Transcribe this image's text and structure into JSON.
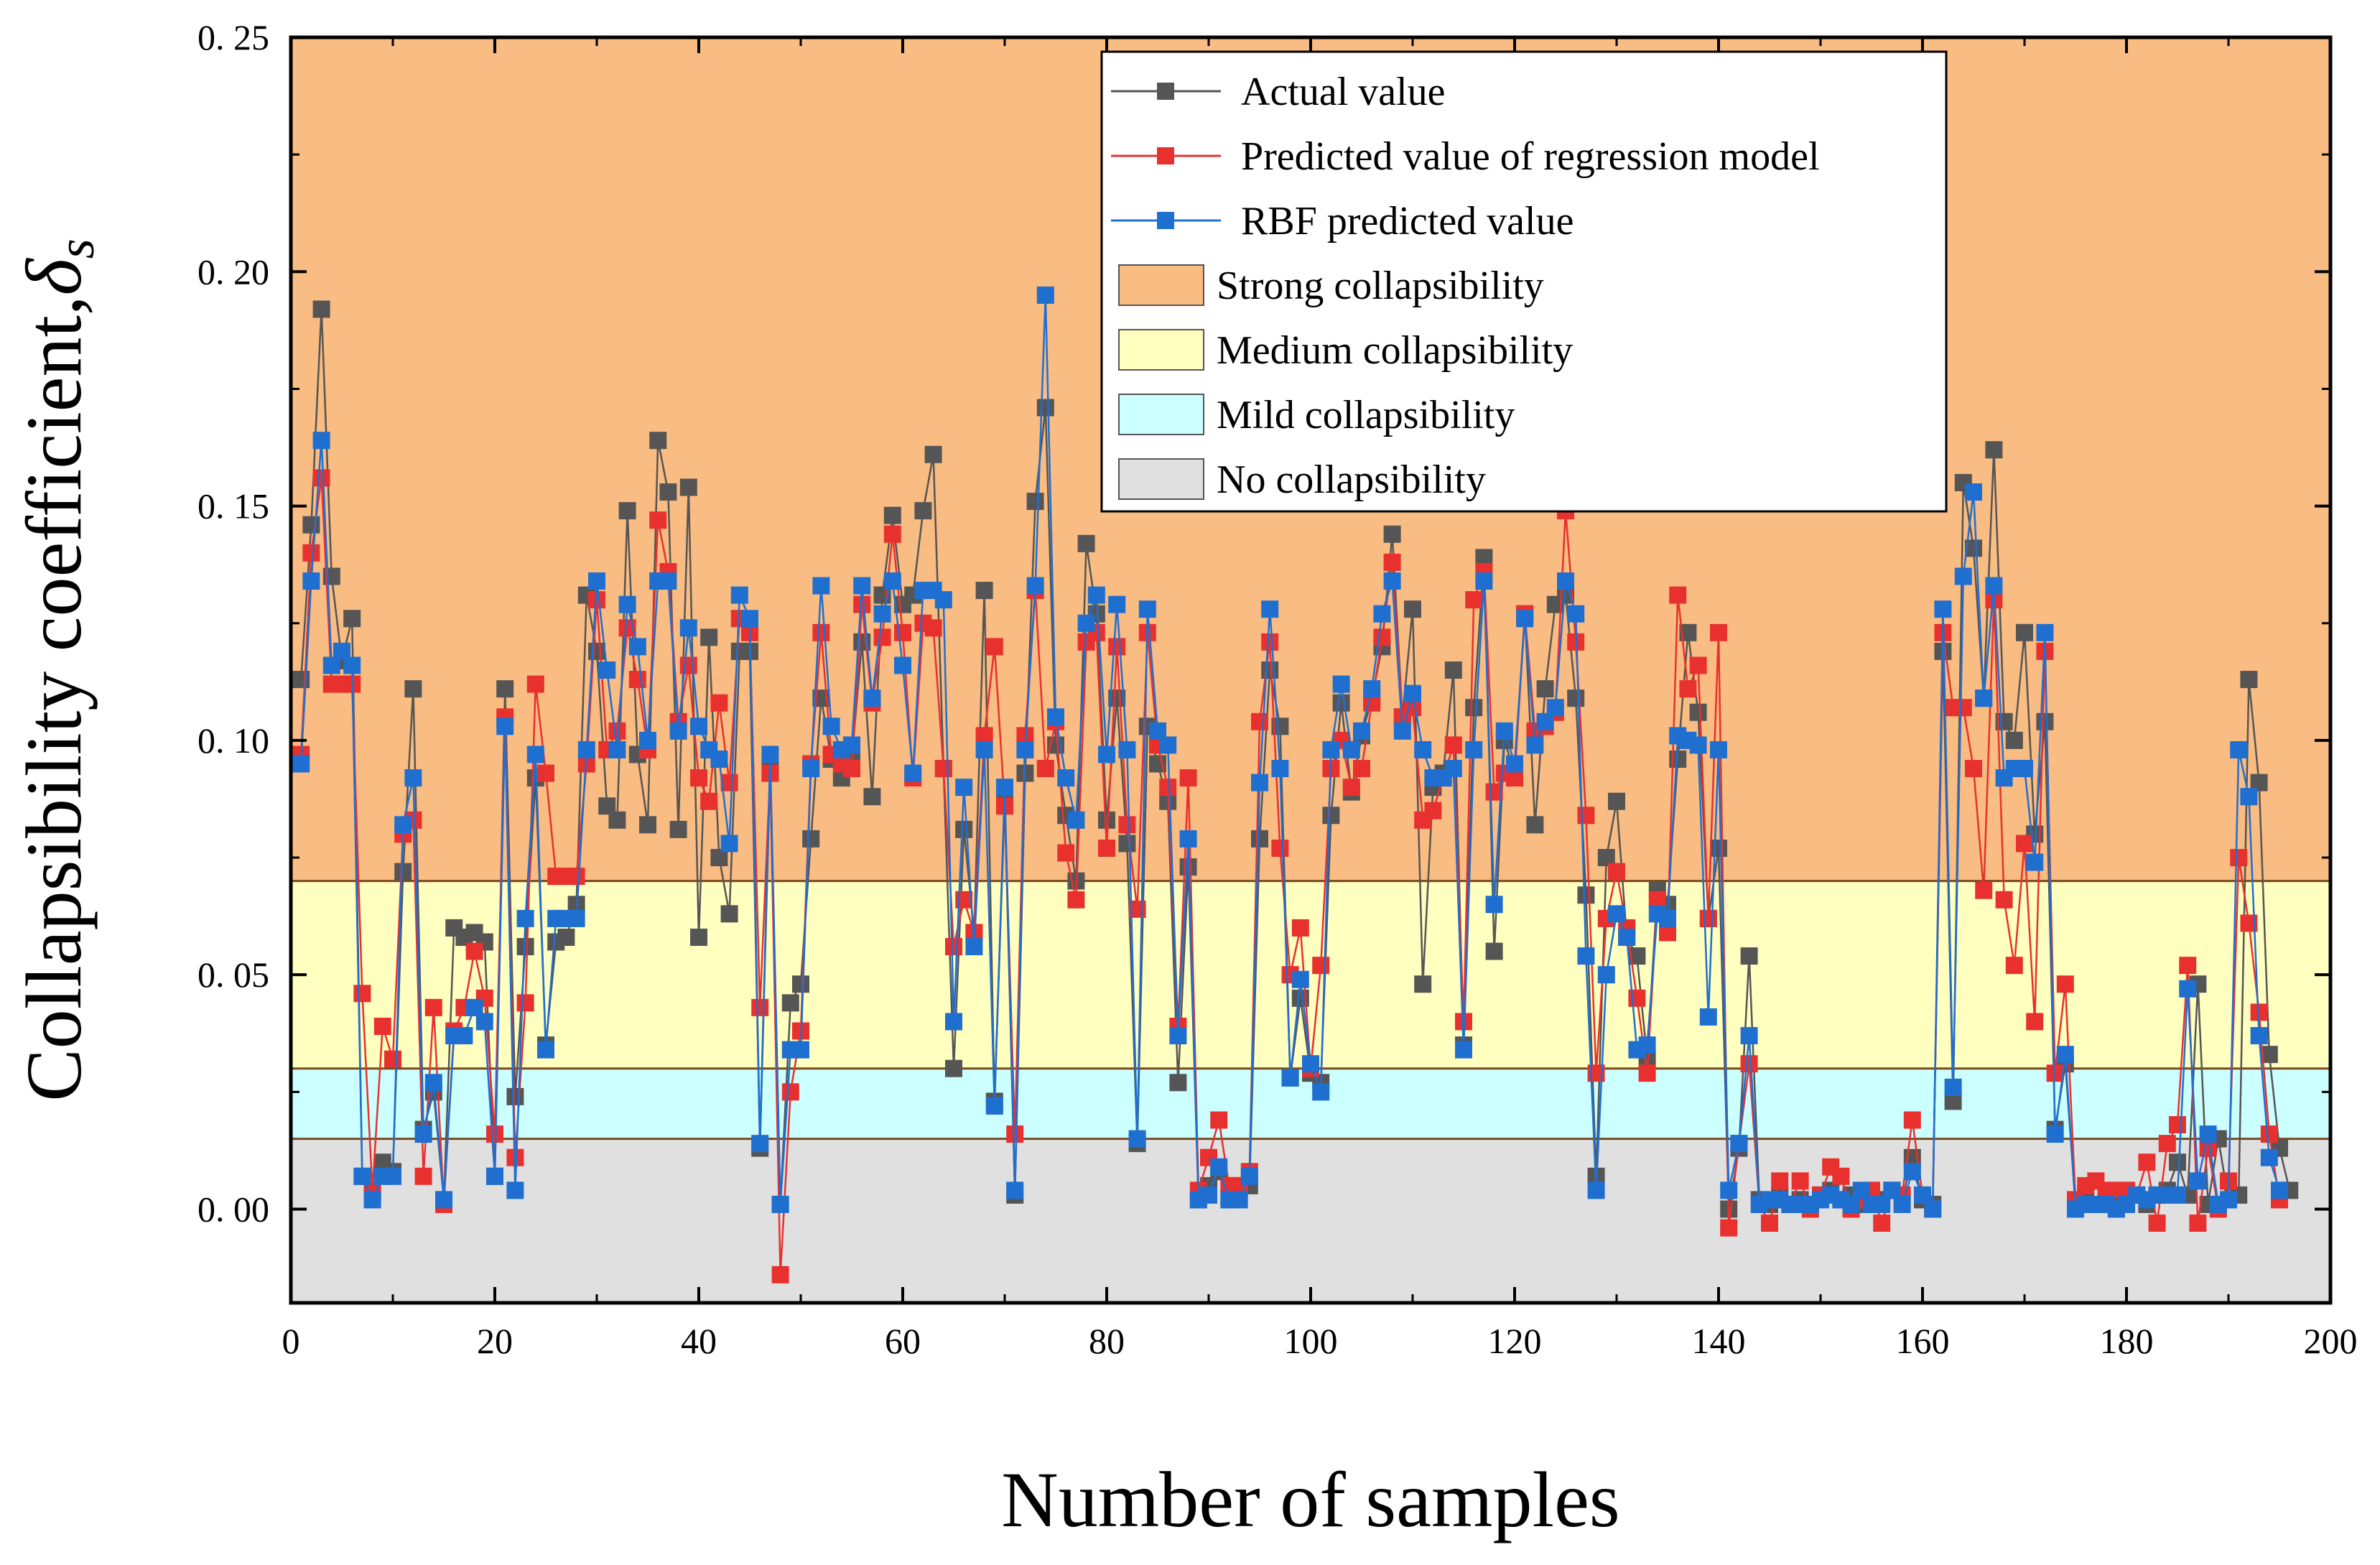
{
  "chart_data": {
    "type": "line",
    "title": "",
    "xlabel": "Number of samples",
    "ylabel": "Collapsibility coefficient,",
    "ylabel_symbol": "δ",
    "ylabel_subscript": "s",
    "xlim": [
      0,
      200
    ],
    "ylim": [
      -0.02,
      0.25
    ],
    "x_ticks": [
      0,
      20,
      40,
      60,
      80,
      100,
      120,
      140,
      160,
      180,
      200
    ],
    "y_ticks": [
      0.0,
      0.05,
      0.1,
      0.15,
      0.2,
      0.25
    ],
    "y_tick_labels": [
      "0. 00",
      "0. 05",
      "0. 10",
      "0. 15",
      "0. 20",
      "0. 25"
    ],
    "grid": false,
    "legend_position": "top-right",
    "bands": [
      {
        "name": "Strong collapsibility",
        "from": 0.07,
        "to": 0.25,
        "color": "#F9BC82"
      },
      {
        "name": "Medium collapsibility",
        "from": 0.03,
        "to": 0.07,
        "color": "#FFFFC0"
      },
      {
        "name": "Mild collapsibility",
        "from": 0.015,
        "to": 0.03,
        "color": "#CCFFFF"
      },
      {
        "name": "No collapsibility",
        "from": -0.02,
        "to": 0.015,
        "color": "#E0E0E0"
      }
    ],
    "band_edge_color": "#7A4A1E",
    "series": [
      {
        "name": "Actual value",
        "color": "#555555",
        "values": [
          0.113,
          0.146,
          0.192,
          0.135,
          0.117,
          0.126,
          0.007,
          0.003,
          0.01,
          0.008,
          0.072,
          0.111,
          0.017,
          0.025,
          0.002,
          0.06,
          0.058,
          0.059,
          0.057,
          0.007,
          0.111,
          0.024,
          0.056,
          0.092,
          0.035,
          0.057,
          0.058,
          0.065,
          0.131,
          0.119,
          0.086,
          0.083,
          0.149,
          0.097,
          0.082,
          0.164,
          0.153,
          0.081,
          0.154,
          0.058,
          0.122,
          0.075,
          0.063,
          0.119,
          0.119,
          0.013,
          0.094,
          0.001,
          0.044,
          0.048,
          0.079,
          0.109,
          0.096,
          0.092,
          0.096,
          0.121,
          0.088,
          0.131,
          0.148,
          0.129,
          0.131,
          0.149,
          0.161,
          0.094,
          0.03,
          0.081,
          0.059,
          0.132,
          0.023,
          0.087,
          0.003,
          0.093,
          0.151,
          0.171,
          0.099,
          0.084,
          0.07,
          0.142,
          0.127,
          0.083,
          0.109,
          0.078,
          0.014,
          0.103,
          0.095,
          0.087,
          0.027,
          0.073,
          0.002,
          0.005,
          0.008,
          0.002,
          0.003,
          0.005,
          0.079,
          0.115,
          0.103,
          0.028,
          0.045,
          0.029,
          0.027,
          0.084,
          0.108,
          0.089,
          0.101,
          0.109,
          0.12,
          0.144,
          0.105,
          0.128,
          0.048,
          0.09,
          0.093,
          0.115,
          0.035,
          0.107,
          0.139,
          0.055,
          0.1,
          0.093,
          0.127,
          0.082,
          0.111,
          0.129,
          0.131,
          0.109,
          0.067,
          0.007,
          0.075,
          0.087,
          0.058,
          0.054,
          0.032,
          0.068,
          0.065,
          0.096,
          0.123,
          0.106,
          0.062,
          0.077,
          0.0,
          0.013,
          0.054,
          0.002,
          0.001,
          0.003,
          0.001,
          0.002,
          0.001,
          0.003,
          0.004,
          0.002,
          0.003,
          0.001,
          0.003,
          0.002,
          0.004,
          0.002,
          0.011,
          0.002,
          0.001,
          0.119,
          0.023,
          0.155,
          0.141,
          0.109,
          0.162,
          0.104,
          0.1,
          0.123,
          0.08,
          0.104,
          0.017,
          0.031,
          0.001,
          0.003,
          0.001,
          0.002,
          0.001,
          0.002,
          0.003,
          0.001,
          0.003,
          0.004,
          0.01,
          0.003,
          0.048,
          0.001,
          0.015,
          0.002,
          0.003,
          0.113,
          0.091,
          0.033,
          0.013,
          0.004
        ]
      },
      {
        "name": "Predicted value of regression model",
        "color": "#E8312F",
        "values": [
          0.097,
          0.14,
          0.156,
          0.112,
          0.112,
          0.112,
          0.046,
          0.004,
          0.039,
          0.032,
          0.08,
          0.083,
          0.007,
          0.043,
          0.001,
          0.038,
          0.043,
          0.055,
          0.045,
          0.016,
          0.105,
          0.011,
          0.044,
          0.112,
          0.093,
          0.071,
          0.071,
          0.071,
          0.095,
          0.13,
          0.098,
          0.102,
          0.124,
          0.113,
          0.098,
          0.147,
          0.136,
          0.104,
          0.116,
          0.092,
          0.087,
          0.108,
          0.091,
          0.126,
          0.123,
          0.043,
          0.093,
          -0.014,
          0.025,
          0.038,
          0.095,
          0.123,
          0.097,
          0.095,
          0.094,
          0.129,
          0.108,
          0.122,
          0.144,
          0.123,
          0.092,
          0.125,
          0.124,
          0.094,
          0.056,
          0.066,
          0.059,
          0.101,
          0.12,
          0.086,
          0.016,
          0.101,
          0.132,
          0.094,
          0.104,
          0.076,
          0.066,
          0.121,
          0.123,
          0.077,
          0.12,
          0.082,
          0.064,
          0.123,
          0.099,
          0.09,
          0.039,
          0.092,
          0.004,
          0.011,
          0.019,
          0.005,
          0.005,
          0.008,
          0.104,
          0.121,
          0.077,
          0.05,
          0.06,
          0.03,
          0.052,
          0.094,
          0.1,
          0.09,
          0.094,
          0.108,
          0.122,
          0.138,
          0.105,
          0.107,
          0.083,
          0.085,
          0.092,
          0.099,
          0.04,
          0.13,
          0.136,
          0.089,
          0.093,
          0.092,
          0.127,
          0.102,
          0.103,
          0.106,
          0.149,
          0.121,
          0.084,
          0.029,
          0.062,
          0.072,
          0.06,
          0.045,
          0.029,
          0.066,
          0.059,
          0.131,
          0.111,
          0.116,
          0.062,
          0.123,
          -0.004,
          0.014,
          0.031,
          0.001,
          -0.003,
          0.006,
          0.001,
          0.006,
          0.0,
          0.003,
          0.009,
          0.007,
          0.0,
          0.002,
          0.004,
          -0.003,
          0.004,
          0.003,
          0.019,
          0.003,
          0.0,
          0.123,
          0.107,
          0.107,
          0.094,
          0.068,
          0.13,
          0.066,
          0.052,
          0.078,
          0.04,
          0.119,
          0.029,
          0.048,
          0.002,
          0.005,
          0.006,
          0.004,
          0.004,
          0.004,
          0.003,
          0.01,
          -0.003,
          0.014,
          0.018,
          0.052,
          -0.003,
          0.013,
          0.0,
          0.006,
          0.075,
          0.061,
          0.042,
          0.016,
          0.002
        ]
      },
      {
        "name": "RBF predicted value",
        "color": "#1F6FD0",
        "values": [
          0.095,
          0.134,
          0.164,
          0.116,
          0.119,
          0.116,
          0.007,
          0.002,
          0.007,
          0.007,
          0.082,
          0.092,
          0.016,
          0.027,
          0.002,
          0.037,
          0.037,
          0.043,
          0.04,
          0.007,
          0.103,
          0.004,
          0.062,
          0.097,
          0.034,
          0.062,
          0.062,
          0.062,
          0.098,
          0.134,
          0.115,
          0.098,
          0.129,
          0.12,
          0.1,
          0.134,
          0.134,
          0.102,
          0.124,
          0.103,
          0.098,
          0.096,
          0.078,
          0.131,
          0.126,
          0.014,
          0.097,
          0.001,
          0.034,
          0.034,
          0.094,
          0.133,
          0.103,
          0.098,
          0.099,
          0.133,
          0.109,
          0.127,
          0.134,
          0.116,
          0.093,
          0.132,
          0.132,
          0.13,
          0.04,
          0.09,
          0.056,
          0.098,
          0.022,
          0.09,
          0.004,
          0.098,
          0.133,
          0.195,
          0.105,
          0.092,
          0.083,
          0.125,
          0.131,
          0.097,
          0.129,
          0.098,
          0.015,
          0.128,
          0.102,
          0.099,
          0.037,
          0.079,
          0.002,
          0.003,
          0.009,
          0.002,
          0.002,
          0.007,
          0.091,
          0.128,
          0.094,
          0.028,
          0.049,
          0.031,
          0.025,
          0.098,
          0.112,
          0.098,
          0.102,
          0.111,
          0.127,
          0.134,
          0.102,
          0.11,
          0.098,
          0.092,
          0.092,
          0.094,
          0.034,
          0.098,
          0.134,
          0.065,
          0.102,
          0.095,
          0.126,
          0.099,
          0.104,
          0.107,
          0.134,
          0.127,
          0.054,
          0.004,
          0.05,
          0.063,
          0.058,
          0.034,
          0.035,
          0.063,
          0.062,
          0.101,
          0.1,
          0.099,
          0.041,
          0.098,
          0.004,
          0.014,
          0.037,
          0.001,
          0.002,
          0.002,
          0.001,
          0.001,
          0.001,
          0.002,
          0.003,
          0.002,
          0.001,
          0.004,
          0.001,
          0.001,
          0.004,
          0.001,
          0.008,
          0.003,
          0.0,
          0.128,
          0.026,
          0.135,
          0.153,
          0.109,
          0.133,
          0.092,
          0.094,
          0.094,
          0.074,
          0.123,
          0.016,
          0.033,
          0.0,
          0.001,
          0.001,
          0.001,
          0.0,
          0.001,
          0.003,
          0.002,
          0.003,
          0.003,
          0.003,
          0.047,
          0.006,
          0.016,
          0.001,
          0.002,
          0.098,
          0.088,
          0.037,
          0.011,
          0.004
        ]
      }
    ]
  }
}
